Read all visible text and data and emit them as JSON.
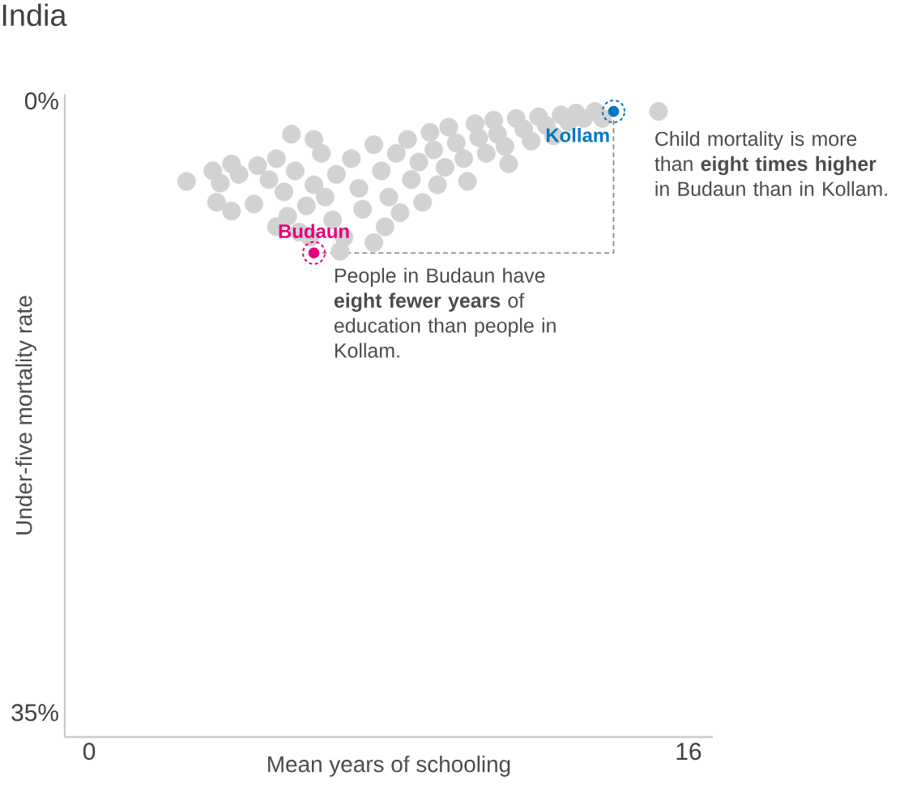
{
  "chart_data": {
    "type": "scatter",
    "title": "India",
    "xlabel": "Mean years of schooling",
    "ylabel": "Under-five mortality rate",
    "xlim": [
      -0.65,
      16.65
    ],
    "ylim": [
      36.4,
      -0.4
    ],
    "xticks": [
      0,
      16
    ],
    "yticks": [
      {
        "value": 0,
        "label": "0%"
      },
      {
        "value": 35,
        "label": "35%"
      }
    ],
    "marker": "circle",
    "grid": false,
    "series": [
      {
        "color": "#d2d2d2",
        "x": [
          2.6,
          3.3,
          3.5,
          3.8,
          3.4,
          4.4,
          4.0,
          4.5,
          4.8,
          5.0,
          5.2,
          5.5,
          5.3,
          5.0,
          5.6,
          5.9,
          5.8,
          6.2,
          6.0,
          6.3,
          6.6,
          6.5,
          6.8,
          7.0,
          7.2,
          7.3,
          7.6,
          7.8,
          7.9,
          8.0,
          8.2,
          8.3,
          8.5,
          8.6,
          8.8,
          8.9,
          9.1,
          9.2,
          9.3,
          9.5,
          9.6,
          9.8,
          10.0,
          10.1,
          10.3,
          10.4,
          10.6,
          10.8,
          10.9,
          11.1,
          11.2,
          11.4,
          11.6,
          11.8,
          12.0,
          12.2,
          12.4,
          12.6,
          12.8,
          13.0,
          13.2,
          13.5,
          13.7,
          15.2,
          3.8,
          7.6,
          6.7,
          5.4,
          6.0
        ],
        "values": [
          4.6,
          4.0,
          4.7,
          3.6,
          5.8,
          5.9,
          4.2,
          3.7,
          4.5,
          3.3,
          5.2,
          4.0,
          6.6,
          7.2,
          7.5,
          7.8,
          6.0,
          3.0,
          4.8,
          5.5,
          4.2,
          6.8,
          7.8,
          3.3,
          5.0,
          6.2,
          2.5,
          4.0,
          7.2,
          5.5,
          3.0,
          6.4,
          2.2,
          4.5,
          3.5,
          5.8,
          1.8,
          2.8,
          4.8,
          3.8,
          1.5,
          2.4,
          3.3,
          4.6,
          1.3,
          2.1,
          3.0,
          1.1,
          1.9,
          2.6,
          3.6,
          1.0,
          1.6,
          2.3,
          0.9,
          1.4,
          2.0,
          0.8,
          1.2,
          0.7,
          1.0,
          0.6,
          1.0,
          0.6,
          6.3,
          8.1,
          8.6,
          1.9,
          2.2
        ]
      },
      {
        "type": "line",
        "color": "#8c8c8c",
        "line_style": "dashed",
        "x": [
          6,
          14,
          14
        ],
        "values": [
          8.7,
          8.7,
          0.6
        ]
      },
      {
        "name": "Budaun",
        "color": "#e6007e",
        "x": [
          6
        ],
        "values": [
          8.7
        ]
      },
      {
        "name": "Kollam",
        "color": "#0077c0",
        "x": [
          14
        ],
        "values": [
          0.6
        ]
      }
    ],
    "annotations": [
      {
        "text": "People in Budaun have **eight fewer years** of education than people in Kollam.",
        "x": 6,
        "y": 8.7
      },
      {
        "text": "Child mortality is more than **eight times higher** in Budaun than in Kollam.",
        "x": 14,
        "y": 0.6
      }
    ]
  }
}
